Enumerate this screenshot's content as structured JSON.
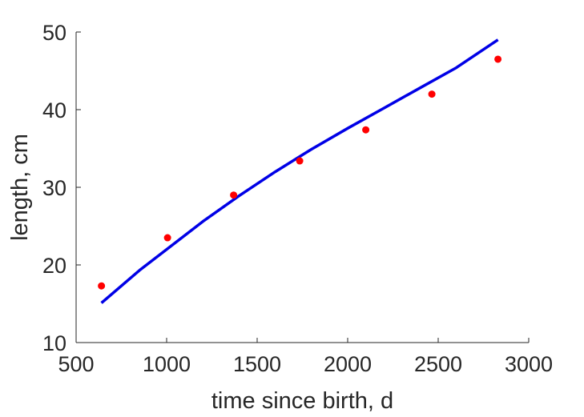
{
  "chart_data": {
    "type": "scatter",
    "xlabel": "time since birth, d",
    "ylabel": "length, cm",
    "xlim": [
      500,
      3000
    ],
    "ylim": [
      10,
      50
    ],
    "xticks": [
      "500",
      "1000",
      "1500",
      "2000",
      "2500",
      "3000"
    ],
    "yticks": [
      "10",
      "20",
      "30",
      "40",
      "50"
    ],
    "grid": false,
    "legend": "none",
    "series": [
      {
        "kind": "points",
        "color": "#ff0000",
        "x": [
          640,
          1005,
          1370,
          1735,
          2100,
          2465,
          2830
        ],
        "y": [
          17.3,
          23.5,
          29.0,
          33.4,
          37.4,
          42.0,
          46.5
        ]
      },
      {
        "kind": "line",
        "color": "#0000e6",
        "x": [
          640,
          850,
          1000,
          1200,
          1400,
          1600,
          1800,
          2000,
          2200,
          2400,
          2600,
          2830
        ],
        "y": [
          15.1,
          19.3,
          22.0,
          25.6,
          28.9,
          32.0,
          34.9,
          37.6,
          40.2,
          42.8,
          45.4,
          49.0
        ]
      }
    ]
  }
}
